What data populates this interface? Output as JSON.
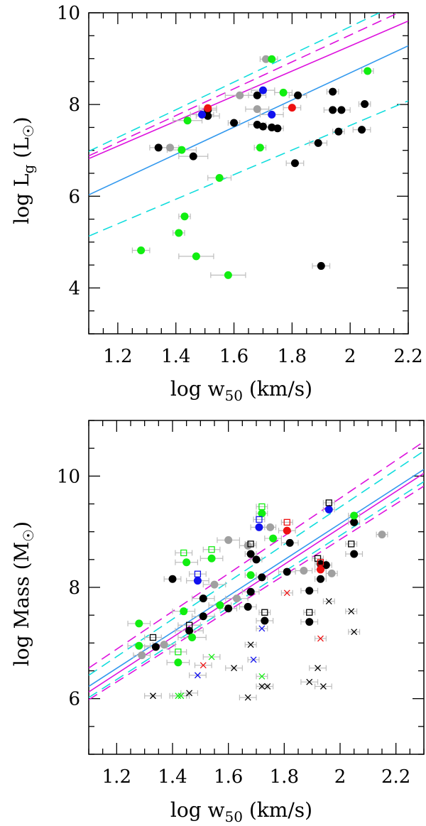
{
  "colors": {
    "black": "#000000",
    "gray": "#a0a0a0",
    "green": "#11ee11",
    "red": "#ee1111",
    "blue": "#1111ee",
    "magenta": "#dd11dd",
    "cyan": "#11dddd",
    "lightblue": "#3399ee",
    "errorbar": "#bdbdbd"
  },
  "chart_data": [
    {
      "type": "scatter",
      "title": "",
      "xlabel": "log w50 (km/s)",
      "ylabel": "log Lg (L☉)",
      "xlim": [
        1.1,
        2.2
      ],
      "ylim": [
        3.0,
        10.0
      ],
      "xticks": [
        "1.2",
        "1.4",
        "1.6",
        "1.8",
        "2",
        "2.2"
      ],
      "yticks": [
        "4",
        "6",
        "8",
        "10"
      ],
      "xtick_values": [
        1.2,
        1.4,
        1.6,
        1.8,
        2.0,
        2.2
      ],
      "ytick_values": [
        4,
        6,
        8,
        10
      ],
      "lines": [
        {
          "name": "magenta-solid",
          "color": "magenta",
          "dash": false,
          "x": [
            1.1,
            2.2
          ],
          "y": [
            6.82,
            9.82
          ]
        },
        {
          "name": "magenta-dashed",
          "color": "magenta",
          "dash": true,
          "x": [
            1.1,
            2.2
          ],
          "y": [
            6.88,
            10.1
          ]
        },
        {
          "name": "cyan-dashed-upper",
          "color": "cyan",
          "dash": true,
          "x": [
            1.1,
            2.2
          ],
          "y": [
            6.98,
            10.3
          ]
        },
        {
          "name": "blue-solid",
          "color": "lightblue",
          "dash": false,
          "x": [
            1.1,
            2.2
          ],
          "y": [
            6.03,
            9.28
          ]
        },
        {
          "name": "cyan-dashed-lower",
          "color": "cyan",
          "dash": true,
          "x": [
            1.1,
            2.2
          ],
          "y": [
            5.13,
            8.08
          ]
        }
      ],
      "series": [
        {
          "name": "black",
          "color": "black",
          "marker": "circle",
          "points": [
            [
              1.34,
              7.06,
              0.03
            ],
            [
              1.46,
              6.87,
              0.05
            ],
            [
              1.51,
              7.88,
              0.03
            ],
            [
              1.51,
              7.75,
              0.04
            ],
            [
              1.6,
              7.6,
              0.02
            ],
            [
              1.68,
              7.56,
              0.03
            ],
            [
              1.68,
              8.2,
              0.03
            ],
            [
              1.7,
              7.52,
              0.02
            ],
            [
              1.73,
              7.5,
              0.02
            ],
            [
              1.75,
              7.48,
              0.02
            ],
            [
              1.82,
              8.2,
              0.03
            ],
            [
              1.81,
              6.72,
              0.03
            ],
            [
              1.89,
              7.16,
              0.03
            ],
            [
              1.94,
              8.28,
              0.02
            ],
            [
              1.94,
              7.88,
              0.03
            ],
            [
              1.97,
              7.88,
              0.03
            ],
            [
              1.96,
              7.41,
              0.02
            ],
            [
              2.04,
              7.45,
              0.03
            ],
            [
              2.05,
              8.01,
              0.02
            ],
            [
              1.9,
              4.48,
              0.03
            ]
          ]
        },
        {
          "name": "gray",
          "color": "gray",
          "marker": "circle",
          "points": [
            [
              1.38,
              7.06,
              0.03
            ],
            [
              1.62,
              8.2,
              0.05
            ],
            [
              1.68,
              7.9,
              0.04
            ],
            [
              1.71,
              8.99,
              0.02
            ]
          ]
        },
        {
          "name": "green",
          "color": "green",
          "marker": "circle",
          "points": [
            [
              1.28,
              4.82,
              0.03
            ],
            [
              1.41,
              5.2,
              0.02
            ],
            [
              1.43,
              5.56,
              0.02
            ],
            [
              1.47,
              4.69,
              0.06
            ],
            [
              1.58,
              4.28,
              0.06
            ],
            [
              1.44,
              7.65,
              0.05
            ],
            [
              1.42,
              7.01,
              0.05
            ],
            [
              1.55,
              6.4,
              0.04
            ],
            [
              1.69,
              7.06,
              0.02
            ],
            [
              1.73,
              8.99,
              0.02
            ],
            [
              1.77,
              8.26,
              0.03
            ],
            [
              2.06,
              8.73,
              0.02
            ]
          ]
        },
        {
          "name": "red",
          "color": "red",
          "marker": "circle",
          "points": [
            [
              1.51,
              7.92,
              0.03
            ],
            [
              1.8,
              7.93,
              0.03
            ]
          ]
        },
        {
          "name": "blue",
          "color": "blue",
          "marker": "circle",
          "points": [
            [
              1.49,
              7.78,
              0.04
            ],
            [
              1.7,
              8.31,
              0.04
            ],
            [
              1.73,
              7.78,
              0.04
            ]
          ]
        }
      ]
    },
    {
      "type": "scatter",
      "title": "",
      "xlabel": "log w50 (km/s)",
      "ylabel": "log Mass (M☉)",
      "xlim": [
        1.1,
        2.3
      ],
      "ylim": [
        5.0,
        11.0
      ],
      "xticks": [
        "1.2",
        "1.4",
        "1.6",
        "1.8",
        "2",
        "2.2"
      ],
      "yticks": [
        "6",
        "8",
        "10"
      ],
      "xtick_values": [
        1.2,
        1.4,
        1.6,
        1.8,
        2.0,
        2.2
      ],
      "ytick_values": [
        6,
        8,
        10
      ],
      "lines": [
        {
          "name": "magenta-dashed-upper",
          "color": "magenta",
          "dash": true,
          "x": [
            1.1,
            2.3
          ],
          "y": [
            6.55,
            10.62
          ]
        },
        {
          "name": "cyan-dashed-upper",
          "color": "cyan",
          "dash": true,
          "x": [
            1.1,
            2.3
          ],
          "y": [
            6.42,
            10.45
          ]
        },
        {
          "name": "blue-solid",
          "color": "lightblue",
          "dash": false,
          "x": [
            1.1,
            2.3
          ],
          "y": [
            6.22,
            10.12
          ]
        },
        {
          "name": "magenta-solid",
          "color": "magenta",
          "dash": false,
          "x": [
            1.1,
            2.3
          ],
          "y": [
            6.12,
            10.05
          ]
        },
        {
          "name": "cyan-dashed-lower",
          "color": "cyan",
          "dash": true,
          "x": [
            1.1,
            2.3
          ],
          "y": [
            6.02,
            9.9
          ]
        },
        {
          "name": "magenta-dashed-lower",
          "color": "magenta",
          "dash": true,
          "x": [
            1.1,
            2.3
          ],
          "y": [
            5.98,
            9.82
          ]
        }
      ],
      "series": [
        {
          "name": "black",
          "color": "black",
          "marker": "circle",
          "points": [
            [
              1.34,
              6.93,
              0.04
            ],
            [
              1.4,
              8.15,
              0.03
            ],
            [
              1.46,
              7.22,
              0.05
            ],
            [
              1.51,
              7.48,
              0.04
            ],
            [
              1.51,
              7.8,
              0.04
            ],
            [
              1.6,
              7.62,
              0.03
            ],
            [
              1.67,
              7.65,
              0.03
            ],
            [
              1.68,
              7.92,
              0.03
            ],
            [
              1.68,
              8.6,
              0.02
            ],
            [
              1.7,
              8.5,
              0.02
            ],
            [
              1.72,
              8.18,
              0.02
            ],
            [
              1.73,
              7.4,
              0.03
            ],
            [
              1.81,
              8.28,
              0.03
            ],
            [
              1.82,
              8.8,
              0.03
            ],
            [
              1.89,
              7.94,
              0.03
            ],
            [
              1.89,
              7.38,
              0.03
            ],
            [
              1.93,
              8.42,
              0.02
            ],
            [
              1.93,
              8.15,
              0.02
            ],
            [
              1.95,
              8.4,
              0.02
            ],
            [
              2.05,
              9.17,
              0.02
            ],
            [
              2.05,
              8.6,
              0.03
            ]
          ]
        },
        {
          "name": "gray",
          "color": "gray",
          "marker": "circle",
          "points": [
            [
              1.29,
              6.78,
              0.03
            ],
            [
              1.37,
              6.97,
              0.04
            ],
            [
              1.55,
              8.05,
              0.04
            ],
            [
              1.6,
              8.85,
              0.04
            ],
            [
              1.63,
              7.8,
              0.04
            ],
            [
              1.67,
              8.75,
              0.03
            ],
            [
              1.75,
              9.08,
              0.02
            ],
            [
              1.87,
              8.3,
              0.03
            ],
            [
              1.97,
              8.25,
              0.02
            ],
            [
              2.15,
              8.95,
              0.02
            ]
          ]
        },
        {
          "name": "green",
          "color": "green",
          "marker": "circle",
          "points": [
            [
              1.28,
              7.35,
              0.04
            ],
            [
              1.28,
              6.95,
              0.04
            ],
            [
              1.42,
              6.65,
              0.04
            ],
            [
              1.44,
              7.57,
              0.04
            ],
            [
              1.47,
              7.1,
              0.05
            ],
            [
              1.45,
              8.45,
              0.04
            ],
            [
              1.54,
              8.52,
              0.04
            ],
            [
              1.57,
              7.68,
              0.04
            ],
            [
              1.68,
              8.22,
              0.02
            ],
            [
              1.72,
              9.33,
              0.02
            ],
            [
              1.76,
              8.88,
              0.03
            ],
            [
              2.05,
              9.29,
              0.02
            ]
          ]
        },
        {
          "name": "red",
          "color": "red",
          "marker": "circle",
          "points": [
            [
              1.81,
              9.02,
              0.03
            ],
            [
              1.93,
              8.32,
              0.02
            ]
          ]
        },
        {
          "name": "blue",
          "color": "blue",
          "marker": "circle",
          "points": [
            [
              1.49,
              8.12,
              0.04
            ],
            [
              1.71,
              9.08,
              0.03
            ],
            [
              1.96,
              9.4,
              0.02
            ]
          ]
        },
        {
          "name": "black-squares",
          "color": "black",
          "marker": "square",
          "points": [
            [
              1.33,
              7.1,
              0.03
            ],
            [
              1.46,
              7.32,
              0.04
            ],
            [
              1.68,
              8.78,
              0.02
            ],
            [
              1.73,
              7.55,
              0.02
            ],
            [
              1.89,
              7.55,
              0.02
            ],
            [
              1.92,
              8.52,
              0.02
            ],
            [
              1.96,
              9.52,
              0.02
            ],
            [
              2.04,
              8.78,
              0.02
            ]
          ]
        },
        {
          "name": "green-squares",
          "color": "green",
          "marker": "square",
          "points": [
            [
              1.42,
              6.84,
              0.03
            ],
            [
              1.44,
              8.62,
              0.03
            ],
            [
              1.54,
              8.68,
              0.03
            ],
            [
              1.72,
              9.45,
              0.02
            ]
          ]
        },
        {
          "name": "red-squares",
          "color": "red",
          "marker": "square",
          "points": [
            [
              1.81,
              9.17,
              0.02
            ],
            [
              1.93,
              8.45,
              0.02
            ]
          ]
        },
        {
          "name": "blue-squares",
          "color": "blue",
          "marker": "square",
          "points": [
            [
              1.49,
              8.24,
              0.03
            ],
            [
              1.71,
              9.22,
              0.02
            ]
          ]
        },
        {
          "name": "black-crosses",
          "color": "black",
          "marker": "cross",
          "points": [
            [
              1.33,
              6.05,
              0.03
            ],
            [
              1.46,
              6.1,
              0.03
            ],
            [
              1.62,
              6.55,
              0.03
            ],
            [
              1.67,
              6.02,
              0.03
            ],
            [
              1.68,
              6.97,
              0.02
            ],
            [
              1.72,
              6.22,
              0.02
            ],
            [
              1.74,
              6.22,
              0.02
            ],
            [
              1.89,
              6.3,
              0.03
            ],
            [
              1.92,
              6.55,
              0.03
            ],
            [
              1.94,
              6.22,
              0.03
            ],
            [
              1.96,
              7.75,
              0.02
            ],
            [
              2.04,
              7.57,
              0.02
            ],
            [
              2.05,
              7.2,
              0.02
            ]
          ]
        },
        {
          "name": "green-crosses",
          "color": "green",
          "marker": "cross",
          "points": [
            [
              1.42,
              6.05,
              0.03
            ],
            [
              1.43,
              6.05,
              0.03
            ],
            [
              1.54,
              6.75,
              0.03
            ],
            [
              1.72,
              6.4,
              0.02
            ]
          ]
        },
        {
          "name": "red-crosses",
          "color": "red",
          "marker": "cross",
          "points": [
            [
              1.51,
              6.6,
              0.03
            ],
            [
              1.81,
              7.9,
              0.02
            ],
            [
              1.93,
              7.08,
              0.02
            ]
          ]
        },
        {
          "name": "blue-crosses",
          "color": "blue",
          "marker": "cross",
          "points": [
            [
              1.49,
              6.42,
              0.03
            ],
            [
              1.69,
              6.7,
              0.02
            ],
            [
              1.72,
              7.26,
              0.02
            ]
          ]
        }
      ]
    }
  ]
}
